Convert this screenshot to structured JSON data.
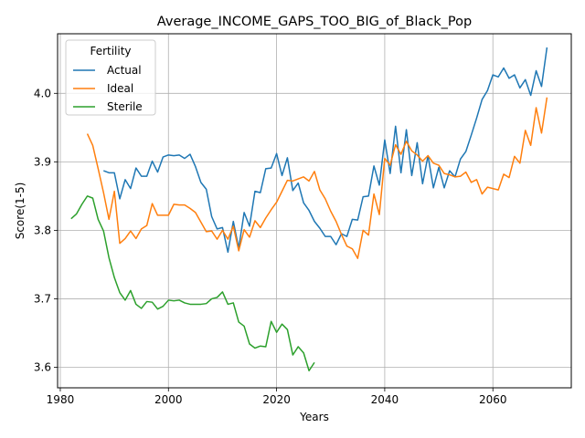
{
  "chart_data": {
    "type": "line",
    "title": "Average_INCOME_GAPS_TOO_BIG_of_Black_Pop",
    "xlabel": "Years",
    "ylabel": "Score(1-5)",
    "xlim": [
      1979.5,
      2074.5
    ],
    "ylim": [
      3.57,
      4.087
    ],
    "xticks": [
      1980,
      2000,
      2020,
      2040,
      2060
    ],
    "yticks": [
      3.6,
      3.7,
      3.8,
      3.9,
      4.0
    ],
    "ytick_labels": [
      "3.6",
      "3.7",
      "3.8",
      "3.9",
      "4.0"
    ],
    "grid": true,
    "legend": {
      "title": "Fertility",
      "position": "upper-left"
    },
    "series": [
      {
        "name": "Actual",
        "color": "#1f77b4",
        "x": [
          1988,
          1989,
          1990,
          1991,
          1992,
          1993,
          1994,
          1995,
          1996,
          1997,
          1998,
          1999,
          2000,
          2001,
          2002,
          2003,
          2004,
          2005,
          2006,
          2007,
          2008,
          2009,
          2010,
          2011,
          2012,
          2013,
          2014,
          2015,
          2016,
          2017,
          2018,
          2019,
          2020,
          2021,
          2022,
          2023,
          2024,
          2025,
          2026,
          2027,
          2028,
          2029,
          2030,
          2031,
          2032,
          2033,
          2034,
          2035,
          2036,
          2037,
          2038,
          2039,
          2040,
          2041,
          2042,
          2043,
          2044,
          2045,
          2046,
          2047,
          2048,
          2049,
          2050,
          2051,
          2052,
          2053,
          2054,
          2055,
          2056,
          2057,
          2058,
          2059,
          2060,
          2061,
          2062,
          2063,
          2064,
          2065,
          2066,
          2067,
          2068,
          2069,
          2070
        ],
        "y": [
          3.887,
          3.884,
          3.884,
          3.846,
          3.874,
          3.861,
          3.891,
          3.879,
          3.879,
          3.901,
          3.885,
          3.907,
          3.91,
          3.909,
          3.91,
          3.905,
          3.911,
          3.893,
          3.87,
          3.86,
          3.82,
          3.802,
          3.804,
          3.768,
          3.813,
          3.774,
          3.826,
          3.806,
          3.857,
          3.855,
          3.89,
          3.891,
          3.912,
          3.88,
          3.906,
          3.858,
          3.869,
          3.84,
          3.829,
          3.813,
          3.803,
          3.791,
          3.791,
          3.779,
          3.795,
          3.791,
          3.816,
          3.815,
          3.849,
          3.85,
          3.894,
          3.866,
          3.932,
          3.883,
          3.952,
          3.884,
          3.947,
          3.88,
          3.928,
          3.868,
          3.909,
          3.862,
          3.892,
          3.862,
          3.887,
          3.878,
          3.904,
          3.915,
          3.939,
          3.964,
          3.991,
          4.004,
          4.027,
          4.024,
          4.037,
          4.022,
          4.027,
          4.008,
          4.02,
          3.997,
          4.033,
          4.01,
          4.067
        ]
      },
      {
        "name": "Ideal",
        "color": "#ff7f0e",
        "x": [
          1985,
          1986,
          1987,
          1988,
          1989,
          1990,
          1991,
          1992,
          1993,
          1994,
          1995,
          1996,
          1997,
          1998,
          1999,
          2000,
          2001,
          2002,
          2003,
          2004,
          2005,
          2006,
          2007,
          2008,
          2009,
          2010,
          2011,
          2012,
          2013,
          2014,
          2015,
          2016,
          2017,
          2018,
          2019,
          2020,
          2021,
          2022,
          2023,
          2024,
          2025,
          2026,
          2027,
          2028,
          2029,
          2030,
          2031,
          2032,
          2033,
          2034,
          2035,
          2036,
          2037,
          2038,
          2039,
          2040,
          2041,
          2042,
          2043,
          2044,
          2045,
          2046,
          2047,
          2048,
          2049,
          2050,
          2051,
          2052,
          2053,
          2054,
          2055,
          2056,
          2057,
          2058,
          2059,
          2060,
          2061,
          2062,
          2063,
          2064,
          2065,
          2066,
          2067,
          2068,
          2069,
          2070
        ],
        "y": [
          3.941,
          3.924,
          3.89,
          3.855,
          3.816,
          3.857,
          3.781,
          3.788,
          3.799,
          3.788,
          3.802,
          3.807,
          3.839,
          3.822,
          3.822,
          3.822,
          3.838,
          3.837,
          3.837,
          3.832,
          3.826,
          3.812,
          3.798,
          3.799,
          3.787,
          3.8,
          3.787,
          3.806,
          3.77,
          3.801,
          3.79,
          3.814,
          3.804,
          3.818,
          3.83,
          3.841,
          3.857,
          3.873,
          3.872,
          3.875,
          3.878,
          3.872,
          3.886,
          3.859,
          3.846,
          3.828,
          3.813,
          3.794,
          3.777,
          3.773,
          3.759,
          3.8,
          3.793,
          3.853,
          3.823,
          3.905,
          3.895,
          3.925,
          3.911,
          3.93,
          3.916,
          3.91,
          3.901,
          3.909,
          3.898,
          3.895,
          3.883,
          3.881,
          3.878,
          3.879,
          3.885,
          3.87,
          3.874,
          3.853,
          3.863,
          3.861,
          3.859,
          3.882,
          3.877,
          3.908,
          3.898,
          3.946,
          3.924,
          3.979,
          3.942,
          3.994
        ]
      },
      {
        "name": "Sterile",
        "color": "#2ca02c",
        "x": [
          1982,
          1983,
          1984,
          1985,
          1986,
          1987,
          1988,
          1989,
          1990,
          1991,
          1992,
          1993,
          1994,
          1995,
          1996,
          1997,
          1998,
          1999,
          2000,
          2001,
          2002,
          2003,
          2004,
          2005,
          2006,
          2007,
          2008,
          2009,
          2010,
          2011,
          2012,
          2013,
          2014,
          2015,
          2016,
          2017,
          2018,
          2019,
          2020,
          2021,
          2022,
          2023,
          2024,
          2025,
          2026,
          2027
        ],
        "y": [
          3.817,
          3.824,
          3.838,
          3.85,
          3.847,
          3.816,
          3.799,
          3.76,
          3.731,
          3.709,
          3.698,
          3.712,
          3.692,
          3.686,
          3.696,
          3.695,
          3.685,
          3.689,
          3.698,
          3.697,
          3.698,
          3.694,
          3.692,
          3.692,
          3.692,
          3.693,
          3.7,
          3.702,
          3.71,
          3.692,
          3.694,
          3.666,
          3.66,
          3.634,
          3.628,
          3.631,
          3.63,
          3.667,
          3.651,
          3.663,
          3.655,
          3.618,
          3.63,
          3.621,
          3.595,
          3.607
        ]
      }
    ]
  }
}
